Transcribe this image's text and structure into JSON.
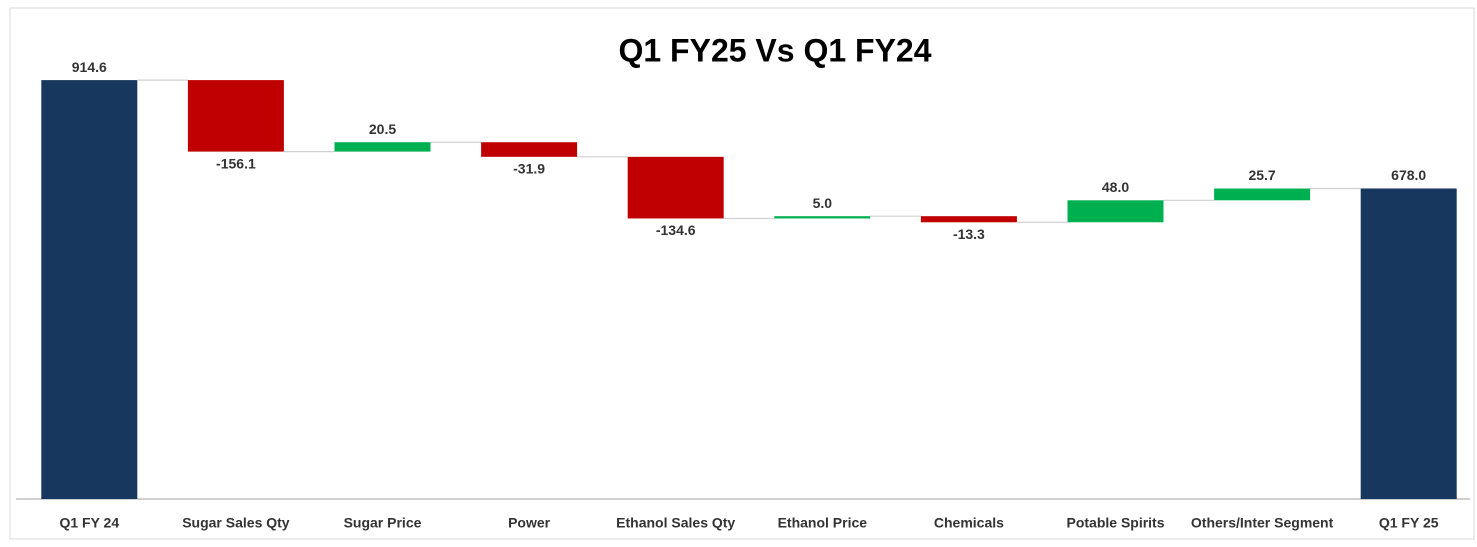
{
  "chart_data": {
    "type": "waterfall",
    "title": "Q1 FY25 Vs Q1 FY24",
    "categories": [
      "Q1 FY 24",
      "Sugar Sales Qty",
      "Sugar Price",
      "Power",
      "Ethanol Sales Qty",
      "Ethanol Price",
      "Chemicals",
      "Potable Spirits",
      "Others/Inter Segment",
      "Q1 FY 25"
    ],
    "values": [
      914.6,
      -156.1,
      20.5,
      -31.9,
      -134.6,
      5.0,
      -13.3,
      48.0,
      25.7,
      678.0
    ],
    "value_labels": [
      "914.6",
      "-156.1",
      "20.5",
      "-31.9",
      "-134.6",
      "5.0",
      "-13.3",
      "48.0",
      "25.7",
      "678.0"
    ],
    "colors": [
      "#17375e",
      "#c00000",
      "#00b050",
      "#c00000",
      "#c00000",
      "#00b050",
      "#c00000",
      "#00b050",
      "#00b050",
      "#17375e"
    ],
    "ylim": [
      0,
      1000
    ]
  }
}
